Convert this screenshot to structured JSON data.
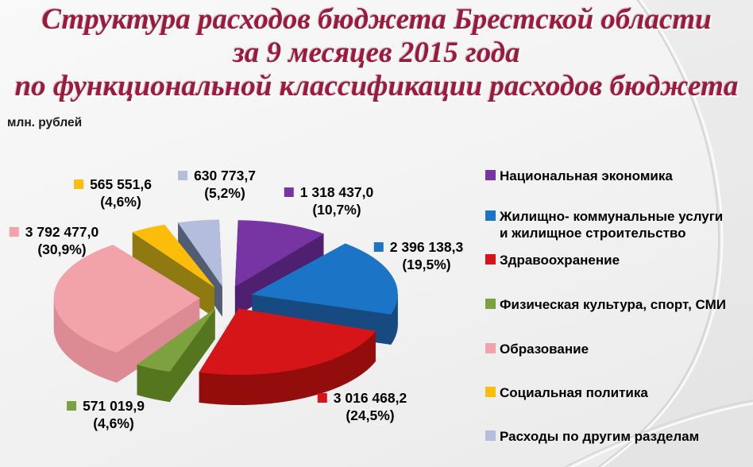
{
  "title": {
    "lines": [
      "Структура расходов бюджета Брестской области",
      "за 9 месяцев 2015 года",
      "по функциональной классификации расходов бюджета"
    ],
    "color": "#9c1b3d"
  },
  "units_label": "млн. рублей",
  "chart_data": {
    "type": "pie",
    "style": "3d-exploded",
    "title": "Структура расходов бюджета Брестской области за 9 месяцев 2015 года по функциональной классификации расходов бюджета",
    "units": "млн. рублей",
    "start_angle_deg": -90,
    "direction": "clockwise",
    "legend_position": "right",
    "slices": [
      {
        "id": "national-economy",
        "label": "Национальная экономика",
        "value": 1318437.0,
        "value_label": "1 318 437,0",
        "percent": 10.7,
        "percent_label": "(10,7%)",
        "color": "#7734a3",
        "side_color": "#4f2070"
      },
      {
        "id": "housing-utilities",
        "label": "Жилищно- коммунальные услуги\nи жилищное строительство",
        "value": 2396138.3,
        "value_label": "2 396 138,3",
        "percent": 19.5,
        "percent_label": "(19,5%)",
        "color": "#1b74c5",
        "side_color": "#174a80"
      },
      {
        "id": "healthcare",
        "label": "Здравоохранение",
        "value": 3016468.2,
        "value_label": "3 016 468,2",
        "percent": 24.5,
        "percent_label": "(24,5%)",
        "color": "#d51517",
        "side_color": "#940d0d"
      },
      {
        "id": "sport-media",
        "label": "Физическая культура, спорт, СМИ",
        "value": 571019.9,
        "value_label": "571 019,9",
        "percent": 4.6,
        "percent_label": "(4,6%)",
        "color": "#7ba23f",
        "side_color": "#55751f"
      },
      {
        "id": "education",
        "label": "Образование",
        "value": 3792477.0,
        "value_label": "3 792 477,0",
        "percent": 30.9,
        "percent_label": "(30,9%)",
        "color": "#f2a3a9",
        "side_color": "#dc8a93"
      },
      {
        "id": "social-policy",
        "label": "Социальная политика",
        "value": 565551.6,
        "value_label": "565 551,6",
        "percent": 4.6,
        "percent_label": "(4,6%)",
        "color": "#fbbd09",
        "side_color": "#8f7a12"
      },
      {
        "id": "other",
        "label": "Расходы по другим разделам",
        "value": 630773.7,
        "value_label": "630 773,7",
        "percent": 5.2,
        "percent_label": "(5,2%)",
        "color": "#b4bedc",
        "side_color": "#525c72"
      }
    ],
    "legend_order": [
      "national-economy",
      "housing-utilities",
      "healthcare",
      "sport-media",
      "education",
      "social-policy",
      "other"
    ]
  }
}
